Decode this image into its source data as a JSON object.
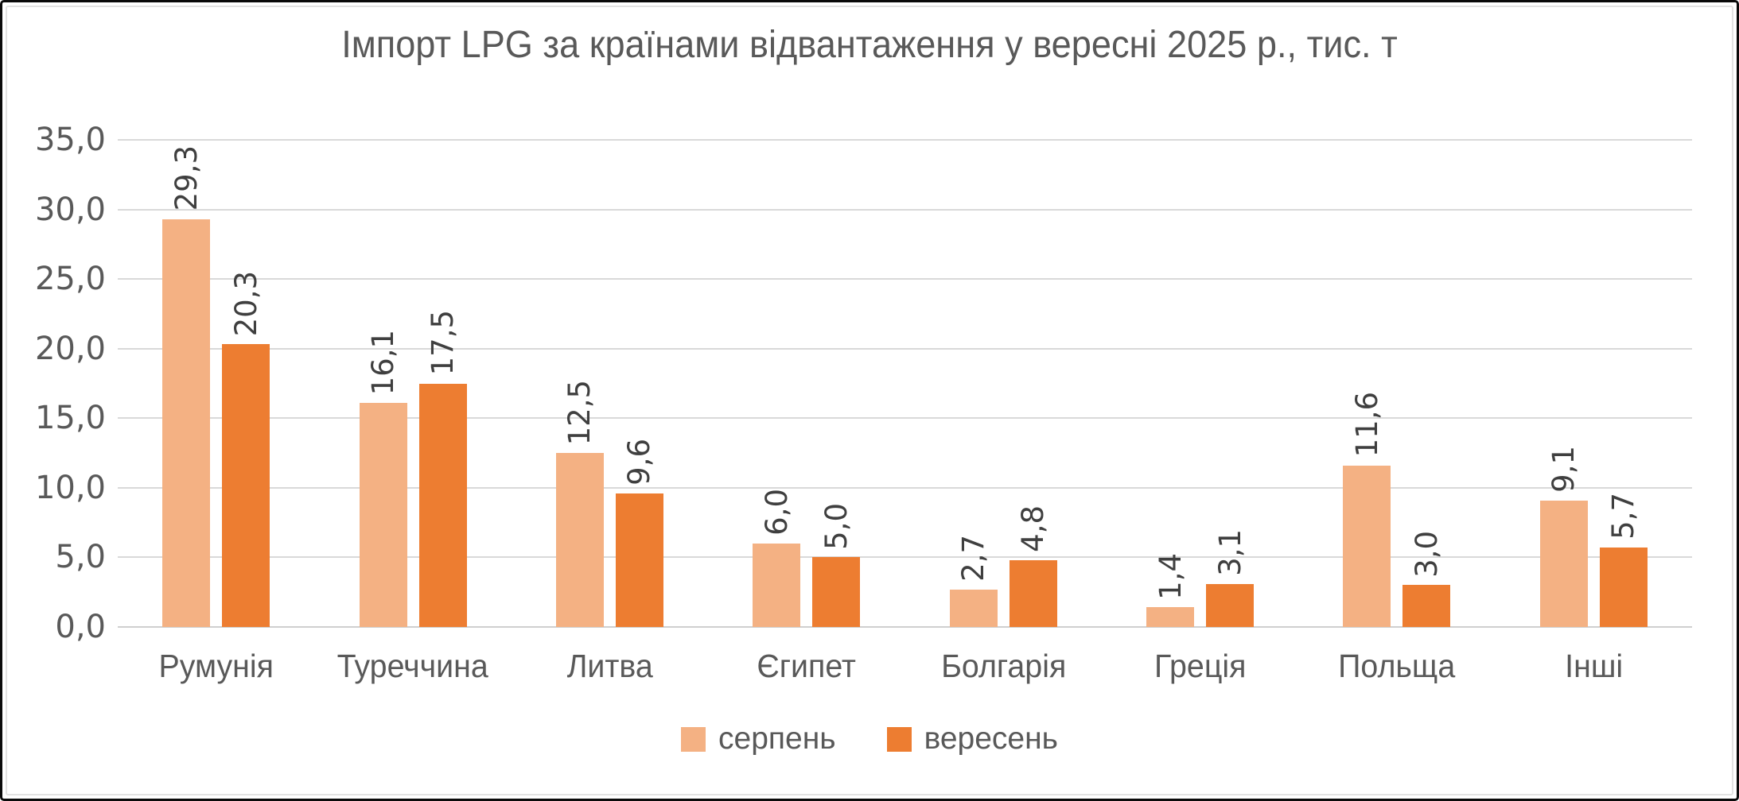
{
  "title": "Імпорт LPG за країнами відвантаження у вересні 2025 р., тис. т",
  "colors": {
    "series_august": "#F4B183",
    "series_september": "#ED7D31",
    "gridline": "#D9D9D9",
    "axis_text": "#595959",
    "value_label_text": "#3F3F3F"
  },
  "y_axis": {
    "tick_labels": [
      "35,0",
      "30,0",
      "25,0",
      "20,0",
      "15,0",
      "10,0",
      "5,0",
      "0,0"
    ],
    "min": 0,
    "max": 35,
    "step": 5
  },
  "legend": {
    "items": [
      {
        "label": "серпень",
        "color": "#F4B183"
      },
      {
        "label": "вересень",
        "color": "#ED7D31"
      }
    ]
  },
  "chart_data": {
    "type": "bar",
    "title": "Імпорт LPG за країнами відвантаження у вересні 2025 р., тис. т",
    "categories": [
      "Румунія",
      "Туреччина",
      "Литва",
      "Єгипет",
      "Болгарія",
      "Греція",
      "Польща",
      "Інші"
    ],
    "series": [
      {
        "name": "серпень",
        "color": "#F4B183",
        "values": [
          29.3,
          16.1,
          12.5,
          6.0,
          2.7,
          1.4,
          11.6,
          9.1
        ],
        "labels": [
          "29,3",
          "16,1",
          "12,5",
          "6,0",
          "2,7",
          "1,4",
          "11,6",
          "9,1"
        ]
      },
      {
        "name": "вересень",
        "color": "#ED7D31",
        "values": [
          20.3,
          17.5,
          9.6,
          5.0,
          4.8,
          3.1,
          3.0,
          5.7
        ],
        "labels": [
          "20,3",
          "17,5",
          "9,6",
          "5,0",
          "4,8",
          "3,1",
          "3,0",
          "5,7"
        ]
      }
    ],
    "xlabel": "",
    "ylabel": "",
    "ylim": [
      0,
      35
    ],
    "grid": true,
    "value_labels_rotated": true,
    "legend_position": "bottom"
  }
}
